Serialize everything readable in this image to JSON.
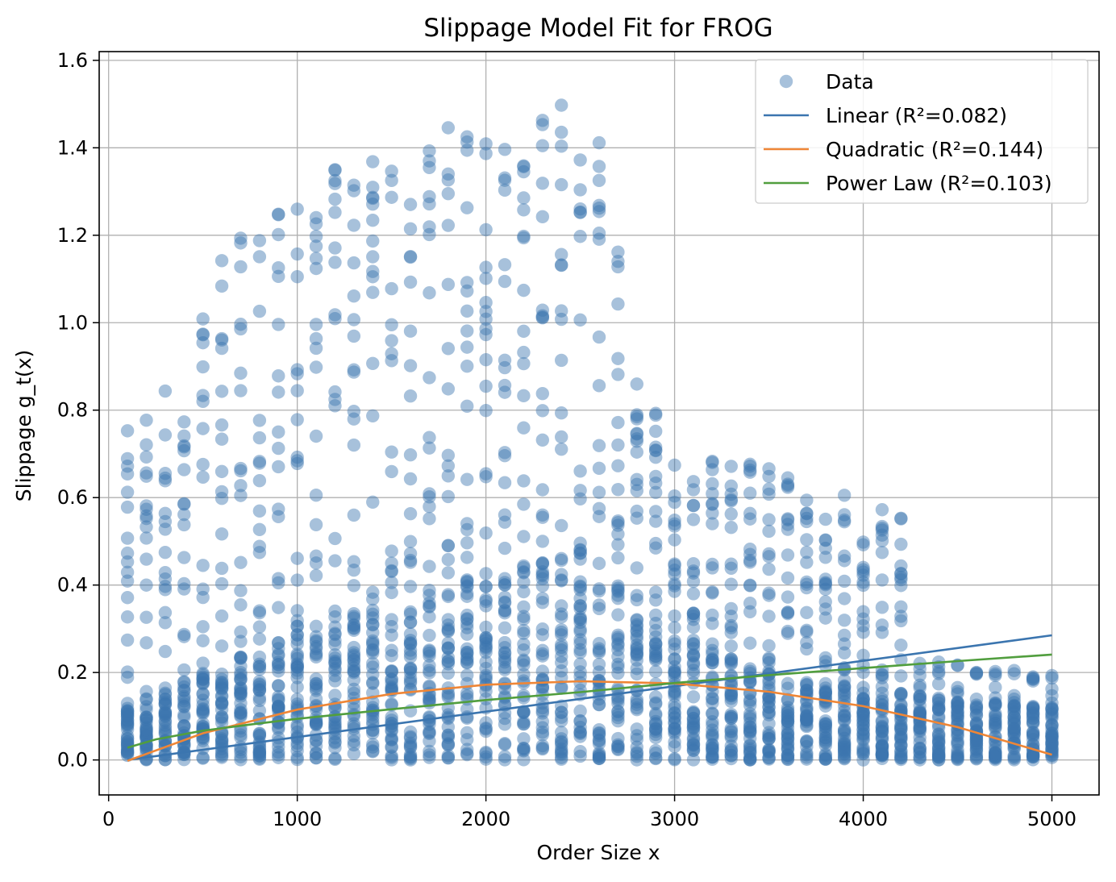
{
  "chart_data": {
    "type": "scatter",
    "title": "Slippage Model Fit for FROG",
    "xlabel": "Order Size x",
    "ylabel": "Slippage g_t(x)",
    "xlim": [
      -50,
      5250
    ],
    "ylim": [
      -0.08,
      1.62
    ],
    "x_ticks": [
      0,
      1000,
      2000,
      3000,
      4000,
      5000
    ],
    "y_ticks": [
      0.0,
      0.2,
      0.4,
      0.6,
      0.8,
      1.0,
      1.2,
      1.4,
      1.6
    ],
    "x_tick_labels": [
      "0",
      "1000",
      "2000",
      "3000",
      "4000",
      "5000"
    ],
    "y_tick_labels": [
      "0.0",
      "0.2",
      "0.4",
      "0.6",
      "0.8",
      "1.0",
      "1.2",
      "1.4",
      "1.6"
    ],
    "grid": true,
    "legend_position": "top-right",
    "scatter": {
      "name": "Data",
      "color": "#3b75af",
      "alpha": 0.45,
      "x_step": 100,
      "x_range": [
        100,
        5000
      ],
      "dense_band_top": [
        [
          100,
          0.13
        ],
        [
          500,
          0.2
        ],
        [
          1000,
          0.3
        ],
        [
          1500,
          0.37
        ],
        [
          2000,
          0.44
        ],
        [
          2300,
          0.47
        ],
        [
          2700,
          0.4
        ],
        [
          3000,
          0.3
        ],
        [
          3400,
          0.22
        ],
        [
          4000,
          0.16
        ],
        [
          5000,
          0.12
        ]
      ],
      "sparse_outer_envelope": [
        [
          100,
          0.77
        ],
        [
          200,
          0.78
        ],
        [
          400,
          0.95
        ],
        [
          600,
          1.15
        ],
        [
          800,
          1.25
        ],
        [
          1000,
          1.32
        ],
        [
          1400,
          1.4
        ],
        [
          1800,
          1.45
        ],
        [
          2200,
          1.48
        ],
        [
          2400,
          1.53
        ],
        [
          2600,
          1.43
        ],
        [
          2800,
          0.91
        ],
        [
          3000,
          0.68
        ],
        [
          3400,
          0.69
        ],
        [
          3800,
          0.62
        ],
        [
          4200,
          0.58
        ]
      ]
    },
    "series": [
      {
        "name": "Linear",
        "legend_label": "Linear (R²=0.082)",
        "r2": 0.082,
        "color": "#3b75af",
        "x": [
          100,
          5000
        ],
        "y": [
          0.0,
          0.285
        ]
      },
      {
        "name": "Quadratic",
        "legend_label": "Quadratic (R²=0.144)",
        "r2": 0.144,
        "color": "#ef8636",
        "x": [
          100,
          500,
          1000,
          1500,
          2000,
          2500,
          3000,
          3500,
          4000,
          4500,
          5000
        ],
        "y": [
          -0.002,
          0.061,
          0.115,
          0.151,
          0.172,
          0.18,
          0.175,
          0.156,
          0.123,
          0.075,
          0.012
        ]
      },
      {
        "name": "Power Law",
        "legend_label": "Power Law (R²=0.103)",
        "r2": 0.103,
        "color": "#519e3e",
        "x": [
          100,
          250,
          500,
          750,
          1000,
          1500,
          2000,
          2500,
          3000,
          3500,
          4000,
          4500,
          5000
        ],
        "y": [
          0.028,
          0.047,
          0.067,
          0.081,
          0.094,
          0.116,
          0.137,
          0.155,
          0.176,
          0.194,
          0.21,
          0.226,
          0.241
        ]
      }
    ],
    "legend": [
      {
        "label": "Data",
        "kind": "marker",
        "color": "#3b75af"
      },
      {
        "label": "Linear (R²=0.082)",
        "kind": "line",
        "color": "#3b75af"
      },
      {
        "label": "Quadratic (R²=0.144)",
        "kind": "line",
        "color": "#ef8636"
      },
      {
        "label": "Power Law (R²=0.103)",
        "kind": "line",
        "color": "#519e3e"
      }
    ]
  }
}
